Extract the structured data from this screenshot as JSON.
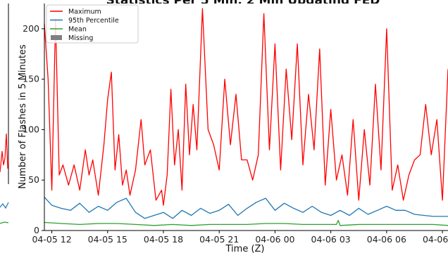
{
  "chart_data": {
    "type": "line",
    "title": "Statistics Per 5 Min, 2 Min Updating FED",
    "xlabel": "Time (Z)",
    "ylabel": "Number of Flashes in 5 Minutes",
    "x_ticks": [
      "04-05 12",
      "04-05 15",
      "04-05 18",
      "04-05 21",
      "04-06 00",
      "04-06 03",
      "04-06 06",
      "04-06 09"
    ],
    "x_range_hours": [
      11.6,
      33.3
    ],
    "ylim": [
      0,
      225
    ],
    "y_ticks": [
      0,
      50,
      100,
      150,
      200
    ],
    "legend_position": "top-left",
    "series": [
      {
        "name": "Maximum",
        "color": "#ff0000",
        "x_hours": [
          11.6,
          11.8,
          12.0,
          12.2,
          12.4,
          12.6,
          12.9,
          13.2,
          13.5,
          13.8,
          14.0,
          14.2,
          14.5,
          14.8,
          15.0,
          15.2,
          15.4,
          15.6,
          15.8,
          16.0,
          16.2,
          16.5,
          16.8,
          17.0,
          17.3,
          17.6,
          17.9,
          18.0,
          18.2,
          18.4,
          18.6,
          18.8,
          19.0,
          19.2,
          19.4,
          19.6,
          19.8,
          20.1,
          20.4,
          20.7,
          21.0,
          21.3,
          21.6,
          21.9,
          22.2,
          22.5,
          22.8,
          23.1,
          23.4,
          23.7,
          24.0,
          24.3,
          24.6,
          24.9,
          25.2,
          25.5,
          25.8,
          26.1,
          26.4,
          26.7,
          27.0,
          27.3,
          27.6,
          27.9,
          28.2,
          28.5,
          28.8,
          29.1,
          29.4,
          29.7,
          30.0,
          30.3,
          30.6,
          30.9,
          31.2,
          31.5,
          31.8,
          32.1,
          32.4,
          32.7,
          33.0,
          33.3
        ],
        "values": [
          205,
          150,
          40,
          210,
          55,
          65,
          45,
          65,
          40,
          80,
          55,
          70,
          35,
          85,
          130,
          157,
          60,
          95,
          45,
          60,
          35,
          60,
          110,
          65,
          80,
          30,
          40,
          25,
          55,
          140,
          65,
          100,
          40,
          145,
          75,
          125,
          80,
          220,
          100,
          85,
          60,
          150,
          85,
          135,
          70,
          70,
          50,
          75,
          215,
          80,
          185,
          60,
          160,
          90,
          185,
          65,
          135,
          80,
          180,
          45,
          120,
          50,
          75,
          35,
          110,
          30,
          100,
          45,
          145,
          60,
          200,
          40,
          65,
          30,
          55,
          70,
          75,
          125,
          75,
          110,
          30,
          160
        ]
      },
      {
        "name": "95th Percentile",
        "color": "#1f77b4",
        "x_hours": [
          11.6,
          12.0,
          12.5,
          13.0,
          13.5,
          14.0,
          14.5,
          15.0,
          15.5,
          16.0,
          16.5,
          17.0,
          17.5,
          18.0,
          18.5,
          19.0,
          19.5,
          20.0,
          20.5,
          21.0,
          21.5,
          22.0,
          22.5,
          23.0,
          23.5,
          24.0,
          24.5,
          25.0,
          25.5,
          26.0,
          26.5,
          27.0,
          27.5,
          28.0,
          28.5,
          29.0,
          29.5,
          30.0,
          30.5,
          31.0,
          31.5,
          32.0,
          32.5,
          33.0,
          33.3
        ],
        "values": [
          33,
          25,
          22,
          20,
          27,
          18,
          24,
          20,
          28,
          32,
          18,
          12,
          15,
          18,
          12,
          20,
          15,
          22,
          17,
          20,
          26,
          15,
          22,
          28,
          32,
          20,
          27,
          22,
          18,
          24,
          18,
          15,
          20,
          15,
          22,
          16,
          20,
          24,
          20,
          20,
          16,
          15,
          14,
          14,
          14
        ]
      },
      {
        "name": "Mean",
        "color": "#2ca02c",
        "x_hours": [
          11.6,
          12.5,
          13.5,
          14.5,
          15.5,
          16.5,
          17.5,
          18.5,
          19.5,
          20.5,
          21.5,
          22.5,
          23.5,
          24.5,
          25.5,
          26.5,
          27.3,
          27.4,
          27.5,
          28.5,
          29.5,
          30.5,
          31.5,
          32.5,
          33.3
        ],
        "values": [
          8,
          7,
          6,
          7,
          7,
          6,
          5,
          6,
          5,
          6,
          6,
          6,
          7,
          7,
          6,
          6,
          6,
          10,
          5,
          6,
          6,
          6,
          6,
          6,
          5
        ]
      },
      {
        "name": "Missing",
        "color": "#808080",
        "x_hours": [],
        "values": []
      }
    ]
  }
}
